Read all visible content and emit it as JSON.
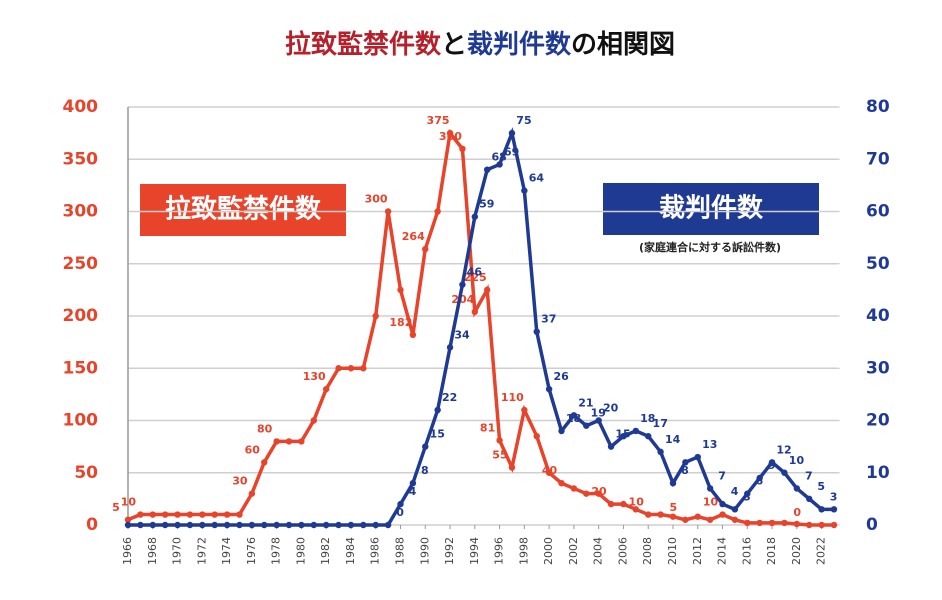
{
  "chart_data": {
    "type": "line",
    "title_parts": [
      {
        "text": "拉致監禁件数",
        "color": "#b5202a"
      },
      {
        "text": "と",
        "color": "#111111"
      },
      {
        "text": "裁判件数",
        "color": "#1f3a93"
      },
      {
        "text": "の相関図",
        "color": "#111111"
      }
    ],
    "annotations": [
      {
        "text": "拉致監禁件数",
        "color": "#e8432b"
      },
      {
        "text": "裁判件数",
        "color": "#1f3a93"
      },
      {
        "text": "(家庭連合に対する訴訟件数)"
      }
    ],
    "x": [
      1966,
      1967,
      1968,
      1969,
      1970,
      1971,
      1972,
      1973,
      1974,
      1975,
      1976,
      1977,
      1978,
      1979,
      1980,
      1981,
      1982,
      1983,
      1984,
      1985,
      1986,
      1987,
      1988,
      1989,
      1990,
      1991,
      1992,
      1993,
      1994,
      1995,
      1996,
      1997,
      1998,
      1999,
      2000,
      2001,
      2002,
      2003,
      2004,
      2005,
      2006,
      2007,
      2008,
      2009,
      2010,
      2011,
      2012,
      2013,
      2014,
      2015,
      2016,
      2017,
      2018,
      2019,
      2020,
      2021,
      2022,
      2023
    ],
    "xlim": [
      1966,
      2023
    ],
    "xticks": [
      1966,
      1968,
      1970,
      1972,
      1974,
      1976,
      1978,
      1980,
      1982,
      1984,
      1986,
      1988,
      1990,
      1992,
      1994,
      1996,
      1998,
      2000,
      2002,
      2004,
      2006,
      2008,
      2010,
      2012,
      2014,
      2016,
      2018,
      2020,
      2022
    ],
    "ylim": [
      0,
      400
    ],
    "yticks": [
      0,
      50,
      100,
      150,
      200,
      250,
      300,
      350,
      400
    ],
    "y2lim": [
      0,
      80
    ],
    "y2ticks": [
      0,
      10,
      20,
      30,
      40,
      50,
      60,
      70,
      80
    ],
    "grid": true,
    "series": [
      {
        "name": "拉致監禁件数",
        "color": "#e8432b",
        "values": [
          5,
          10,
          10,
          10,
          10,
          10,
          10,
          10,
          10,
          10,
          30,
          60,
          80,
          80,
          80,
          100,
          130,
          150,
          150,
          150,
          200,
          300,
          225,
          182,
          264,
          300,
          375,
          360,
          204,
          225,
          81,
          55,
          110,
          85,
          50,
          40,
          35,
          30,
          30,
          20,
          20,
          15,
          10,
          10,
          8,
          5,
          8,
          5,
          10,
          5,
          2,
          2,
          2,
          2,
          1,
          0,
          0,
          0
        ],
        "data_labels": [
          5,
          10,
          null,
          null,
          null,
          null,
          null,
          null,
          null,
          null,
          30,
          60,
          80,
          null,
          null,
          null,
          130,
          null,
          null,
          null,
          null,
          300,
          null,
          182,
          264,
          null,
          375,
          360,
          204,
          225,
          81,
          55,
          110,
          null,
          null,
          40,
          null,
          null,
          null,
          20,
          null,
          null,
          10,
          null,
          null,
          5,
          null,
          null,
          10,
          null,
          null,
          null,
          null,
          null,
          null,
          0,
          null,
          null
        ]
      },
      {
        "name": "裁判件数",
        "color": "#1f3a93",
        "axis": "y2",
        "values": [
          0,
          0,
          0,
          0,
          0,
          0,
          0,
          0,
          0,
          0,
          0,
          0,
          0,
          0,
          0,
          0,
          0,
          0,
          0,
          0,
          0,
          0,
          4,
          8,
          15,
          22,
          34,
          46,
          59,
          68,
          69,
          75,
          64,
          37,
          26,
          18,
          21,
          19,
          20,
          15,
          17,
          18,
          17,
          14,
          8,
          12,
          13,
          7,
          4,
          3,
          6,
          9,
          12,
          10,
          7,
          5,
          3,
          3
        ],
        "data_labels": [
          null,
          null,
          null,
          null,
          null,
          null,
          null,
          null,
          null,
          null,
          null,
          null,
          null,
          null,
          null,
          null,
          null,
          null,
          null,
          null,
          null,
          0,
          4,
          8,
          15,
          22,
          34,
          46,
          59,
          68,
          69,
          75,
          64,
          37,
          26,
          18,
          21,
          19,
          20,
          15,
          null,
          18,
          17,
          14,
          8,
          null,
          13,
          7,
          4,
          3,
          6,
          9,
          12,
          10,
          7,
          5,
          3,
          null
        ]
      }
    ]
  }
}
